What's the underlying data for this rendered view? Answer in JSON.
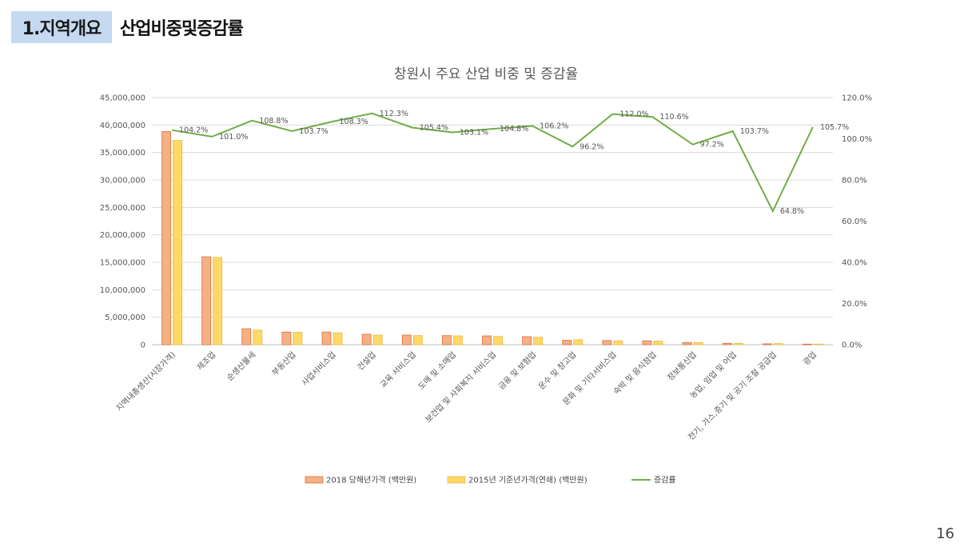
{
  "header": {
    "section_tag": "1.지역개요",
    "section_title": "산업비중및증감률"
  },
  "page_number": "16",
  "chart_data": {
    "type": "bar",
    "title": "창원시 주요 산업 비중 및 증감율",
    "categories": [
      "지역내총생산(시장가격)",
      "제조업",
      "순생산물세",
      "부동산업",
      "사업서비스업",
      "건설업",
      "교육 서비스업",
      "도매 및 소매업",
      "보건업 및 사회복지 서비스업",
      "금융 및 보험업",
      "운수 및 창고업",
      "문화 및 기타서비스업",
      "숙박 및 음식점업",
      "정보통신업",
      "농업, 임업 및 어업",
      "전기, 가스,증기 및 공기 조절 공급업",
      "광업"
    ],
    "series": [
      {
        "name": "2018 당해년가격 (백만원)",
        "type": "bar",
        "axis": "left",
        "color": "#f4b183",
        "border": "#e06c3a",
        "values": [
          38800000,
          16000000,
          2900000,
          2300000,
          2300000,
          1900000,
          1750000,
          1650000,
          1600000,
          1450000,
          800000,
          750000,
          700000,
          400000,
          250000,
          150000,
          100000
        ]
      },
      {
        "name": "2015년 기준년가격(연쇄) (백만원)",
        "type": "bar",
        "axis": "left",
        "color": "#ffd966",
        "border": "#e8b84a",
        "values": [
          37200000,
          15900000,
          2650000,
          2250000,
          2150000,
          1750000,
          1650000,
          1600000,
          1500000,
          1350000,
          900000,
          700000,
          650000,
          400000,
          250000,
          200000,
          100000
        ]
      },
      {
        "name": "증감률",
        "type": "line",
        "axis": "right",
        "color": "#70ad47",
        "values": [
          104.2,
          101.0,
          108.8,
          103.7,
          108.3,
          112.3,
          105.4,
          103.1,
          104.8,
          106.2,
          96.2,
          112.0,
          110.6,
          97.2,
          103.7,
          64.8,
          105.7
        ],
        "labels": [
          "104.2%",
          "101.0%",
          "108.8%",
          "103.7%",
          "108.3%",
          "112.3%",
          "105.4%",
          "103.1%",
          "104.8%",
          "106.2%",
          "96.2%",
          "112.0%",
          "110.6%",
          "97.2%",
          "103.7%",
          "64.8%",
          "105.7%"
        ]
      }
    ],
    "y_left": {
      "range": [
        0,
        45000000
      ],
      "ticks": [
        0,
        5000000,
        10000000,
        15000000,
        20000000,
        25000000,
        30000000,
        35000000,
        40000000,
        45000000
      ],
      "tick_labels": [
        "0",
        "5,000,000",
        "10,000,000",
        "15,000,000",
        "20,000,000",
        "25,000,000",
        "30,000,000",
        "35,000,000",
        "40,000,000",
        "45,000,000"
      ]
    },
    "y_right": {
      "range": [
        0,
        120
      ],
      "ticks": [
        0,
        20,
        40,
        60,
        80,
        100,
        120
      ],
      "tick_labels": [
        "0.0%",
        "20.0%",
        "40.0%",
        "60.0%",
        "80.0%",
        "100.0%",
        "120.0%"
      ]
    },
    "grid": true,
    "legend_position": "bottom"
  }
}
